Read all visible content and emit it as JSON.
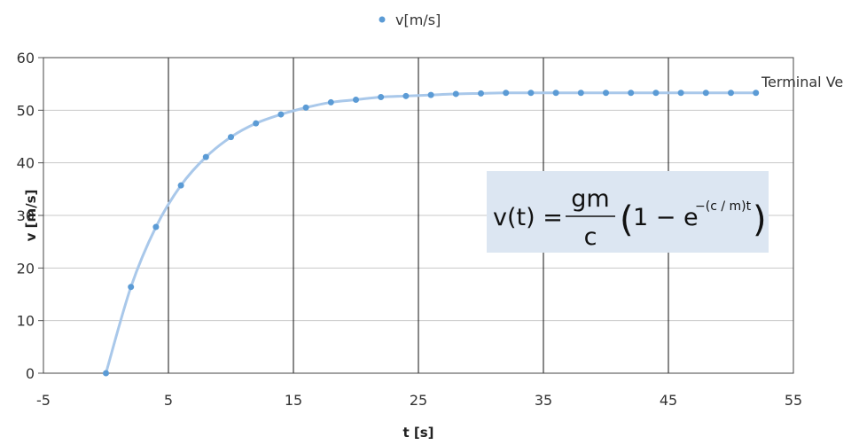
{
  "chart_data": {
    "type": "scatter",
    "title": "",
    "xlabel": "t [s]",
    "ylabel": "v [m/s]",
    "xlim": [
      -5,
      55
    ],
    "ylim": [
      0,
      60
    ],
    "x_ticks": [
      "-5",
      "5",
      "15",
      "25",
      "35",
      "45",
      "55"
    ],
    "y_ticks": [
      "0",
      "10",
      "20",
      "30",
      "40",
      "50",
      "60"
    ],
    "grid": true,
    "legend_position": "top-center",
    "series": [
      {
        "name": "v[m/s]",
        "color": "#5b9bd5",
        "line_color": "#a9c8ea",
        "smoothed_line": true,
        "x": [
          0,
          2,
          4,
          6,
          8,
          10,
          12,
          14,
          16,
          18,
          20,
          22,
          24,
          26,
          28,
          30,
          32,
          34,
          36,
          38,
          40,
          42,
          44,
          46,
          48,
          50,
          52
        ],
        "y": [
          0,
          16.4,
          27.8,
          35.7,
          41.1,
          44.9,
          47.5,
          49.2,
          50.5,
          51.5,
          52.0,
          52.5,
          52.7,
          52.9,
          53.1,
          53.2,
          53.3,
          53.3,
          53.3,
          53.3,
          53.3,
          53.3,
          53.3,
          53.3,
          53.3,
          53.3,
          53.3
        ]
      }
    ],
    "annotations": [
      {
        "text": "Terminal Ve",
        "x": 52,
        "y": 53.3
      }
    ],
    "formula": {
      "lhs": "v(t) =",
      "numerator": "gm",
      "denominator": "c",
      "paren_open": "(",
      "one_minus": "1 − e",
      "exponent": "−(c / m)t",
      "paren_close": ")",
      "background": "#dce6f2"
    }
  }
}
